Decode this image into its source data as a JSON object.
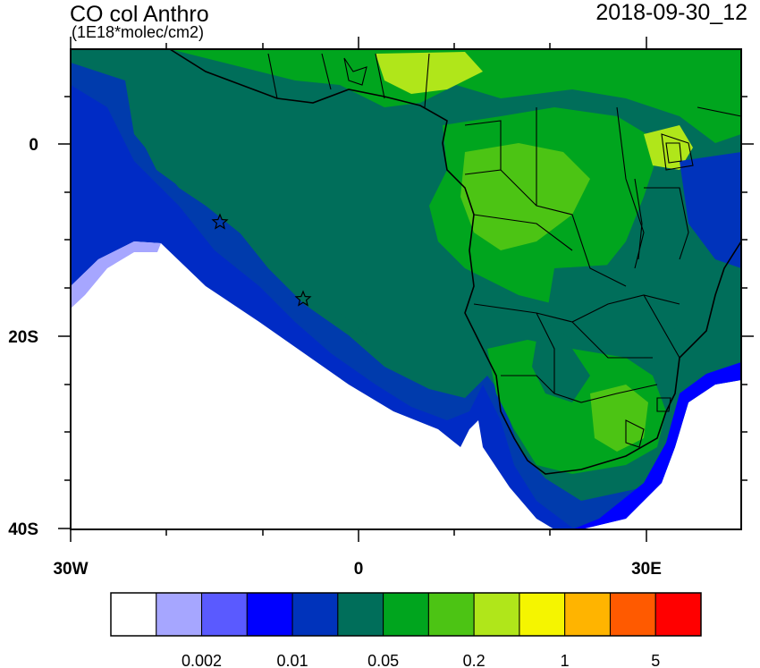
{
  "header": {
    "title": "CO col Anthro",
    "units": "(1E18*molec/cm2)",
    "datetime": "2018-09-30_12"
  },
  "axes": {
    "lon_ticks": [
      "30W",
      "0",
      "30E"
    ],
    "lat_ticks": [
      "0",
      "20S",
      "40S"
    ]
  },
  "colorbar": {
    "colors": [
      "#ffffff",
      "#a6a6ff",
      "#5a5aff",
      "#0000ff",
      "#0033bb",
      "#006e5a",
      "#00a51e",
      "#4cc414",
      "#b0e61a",
      "#f5f500",
      "#ffb400",
      "#ff5a00",
      "#ff0000"
    ],
    "labels": [
      "0.002",
      "0.01",
      "0.05",
      "0.2",
      "1",
      "5"
    ]
  },
  "markers": {
    "count": 2,
    "shape": "star"
  }
}
